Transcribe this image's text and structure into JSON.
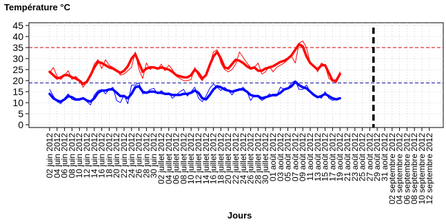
{
  "chart_data": {
    "type": "line",
    "title": "",
    "ylabel": "Température °C",
    "xlabel": "Jours",
    "ylim": [
      0,
      45
    ],
    "yticks": [
      0,
      5,
      10,
      15,
      20,
      25,
      30,
      35,
      40,
      45
    ],
    "grid": true,
    "x_start": "2012-06-02",
    "x_tick_labels": [
      "02 juin 2012",
      "04 juin 2012",
      "06 juin 2012",
      "08 juin 2012",
      "10 juin 2012",
      "12 juin 2012",
      "14 juin 2012",
      "16 juin 2012",
      "18 juin 2012",
      "20 juin 2012",
      "22 juin 2012",
      "24 juin 2012",
      "26 juin 2012",
      "28 juin 2012",
      "30 juin 2012",
      "02 juillet 2012",
      "04 juillet 2012",
      "06 juillet 2012",
      "08 juillet 2012",
      "10 juillet 2012",
      "12 juillet 2012",
      "14 juillet 2012",
      "16 juillet 2012",
      "18 juillet 2012",
      "20 juillet 2012",
      "22 juillet 2012",
      "24 juillet 2012",
      "26 juillet 2012",
      "28 juillet 2012",
      "30 juillet 2012",
      "01 août 2012",
      "03 août 2012",
      "05 août 2012",
      "07 août 2012",
      "09 août 2012",
      "11 août 2012",
      "13 août 2012",
      "15 août 2012",
      "17 août 2012",
      "19 août 2012",
      "21 août 2012",
      "23 août 2012",
      "25 août 2012",
      "27 août 2012",
      "29 août 2012",
      "31 août 2012",
      "02 septembre 2012",
      "04 septembre 2012",
      "06 septembre 2012",
      "08 septembre 2012",
      "10 septembre 2012",
      "12 septembre 2012"
    ],
    "reference_lines": [
      {
        "orientation": "horizontal",
        "value": 35,
        "style": "dashed",
        "color": "#cc0000"
      },
      {
        "orientation": "horizontal",
        "value": 19,
        "style": "dashed",
        "color": "#000099"
      },
      {
        "orientation": "vertical",
        "x": "2012-08-28",
        "style": "dashed",
        "color": "#000000"
      }
    ],
    "series": [
      {
        "role": "max_observed",
        "color": "#ff0000",
        "width": 1,
        "values": [
          23.5,
          26,
          22,
          20.5,
          22.5,
          24.5,
          20.5,
          22,
          20,
          17,
          19.5,
          23,
          27.5,
          29.5,
          25.5,
          29.5,
          27,
          26,
          25,
          22.5,
          23,
          24.5,
          26,
          33,
          25,
          21,
          28,
          25,
          26.5,
          25,
          27.5,
          24.5,
          27,
          25,
          22,
          21,
          20,
          20,
          20.5,
          26,
          22,
          20,
          23,
          27,
          33,
          34,
          28,
          25,
          24,
          25,
          27.5,
          33,
          30.5,
          28,
          26,
          26,
          28,
          23,
          24,
          26.5,
          24,
          26,
          27,
          28,
          29.5,
          31,
          28,
          37,
          38,
          35,
          28,
          27,
          24,
          28,
          27,
          21,
          20,
          19,
          24
        ]
      },
      {
        "role": "max_smoothed",
        "color": "#ff0000",
        "width": 3.5,
        "values": [
          24,
          22.5,
          21,
          21.5,
          22.5,
          22.5,
          21.5,
          21,
          20,
          18.5,
          19.5,
          22.5,
          26,
          28.5,
          28,
          27,
          26,
          25.5,
          24.5,
          23.5,
          24.5,
          26.5,
          30,
          32,
          28,
          24,
          25.5,
          26,
          26,
          25.5,
          26,
          25.5,
          25,
          24,
          22.5,
          22,
          21.5,
          21.5,
          22.5,
          25,
          23.5,
          21,
          22.5,
          27,
          31,
          33,
          30,
          26,
          25.5,
          27.5,
          29.5,
          29,
          28,
          26.5,
          25.5,
          26,
          24.5,
          24.5,
          25.5,
          26,
          26.5,
          27.5,
          28.5,
          29,
          30,
          31.5,
          34,
          36.5,
          35.5,
          31,
          28,
          26.5,
          25,
          27,
          27,
          23.5,
          20,
          20,
          23
        ]
      },
      {
        "role": "min_observed",
        "color": "#0000ff",
        "width": 1,
        "values": [
          16,
          13,
          10.5,
          9.5,
          12,
          14,
          11.5,
          11,
          11,
          12,
          10.5,
          9,
          13.5,
          15.5,
          16,
          14,
          16,
          17,
          11,
          10,
          13.5,
          9.5,
          18,
          18,
          19,
          14,
          14.5,
          16,
          16.5,
          14,
          15.5,
          14,
          14.5,
          12,
          13.5,
          15,
          16,
          13,
          15,
          17,
          12,
          10.5,
          13,
          16.5,
          18.5,
          17,
          15.5,
          17,
          15.5,
          13.5,
          16,
          16,
          17,
          15,
          11,
          13.5,
          12.5,
          11,
          12,
          14,
          13,
          13,
          17,
          16,
          16.5,
          19,
          20,
          16,
          16,
          18,
          15,
          13,
          13,
          12,
          15,
          12,
          11,
          11.5,
          12
        ]
      },
      {
        "role": "min_smoothed",
        "color": "#0000ff",
        "width": 3.5,
        "values": [
          14,
          12,
          11,
          10.5,
          11.5,
          13,
          12.5,
          11.5,
          11.5,
          12,
          11,
          10.5,
          12,
          14.5,
          15.5,
          15.5,
          16,
          16,
          14.5,
          13,
          13,
          12,
          14,
          17,
          17.5,
          15,
          14.5,
          15,
          15,
          14.5,
          14.5,
          14,
          14,
          13.5,
          13.5,
          13.5,
          14,
          14,
          14.5,
          15.5,
          14.5,
          12,
          11.5,
          13.5,
          16,
          17.5,
          17,
          16,
          15.5,
          15,
          15.5,
          16,
          16,
          15,
          13.5,
          13,
          13,
          12,
          12.5,
          13,
          13.5,
          13.5,
          14.5,
          16,
          16.5,
          17.5,
          19.5,
          18,
          17,
          16.5,
          15,
          13.5,
          12.5,
          13,
          14,
          13,
          12,
          11.5,
          12
        ]
      }
    ]
  }
}
